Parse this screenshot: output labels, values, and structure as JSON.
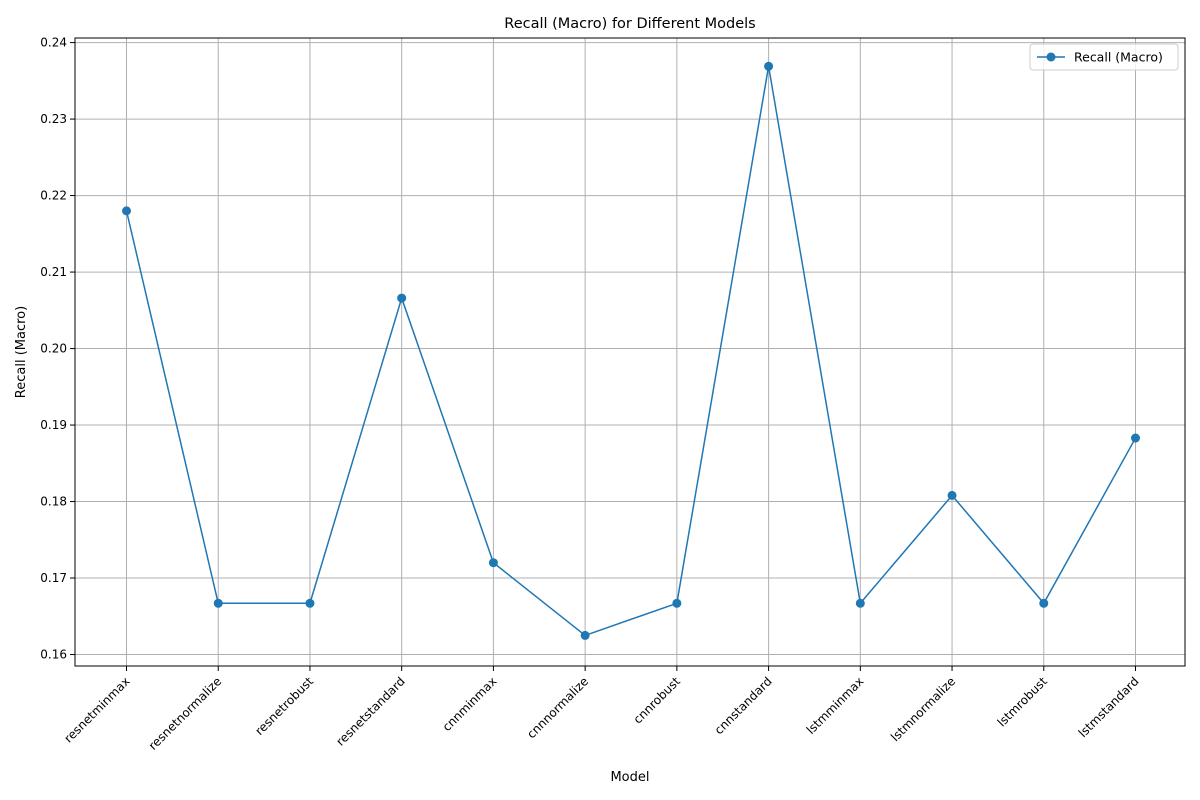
{
  "chart_data": {
    "type": "line",
    "title": "Recall (Macro) for Different Models",
    "xlabel": "Model",
    "ylabel": "Recall (Macro)",
    "categories": [
      "resnetminmax",
      "resnetnormalize",
      "resnetrobust",
      "resnetstandard",
      "cnnminmax",
      "cnnnormalize",
      "cnnrobust",
      "cnnstandard",
      "lstmminmax",
      "lstmnormalize",
      "lstmrobust",
      "lstmstandard"
    ],
    "series": [
      {
        "name": "Recall (Macro)",
        "values": [
          0.218,
          0.1667,
          0.1667,
          0.2066,
          0.172,
          0.1625,
          0.1667,
          0.2369,
          0.1667,
          0.1808,
          0.1667,
          0.1883
        ],
        "color": "#1f77b4",
        "marker": "circle"
      }
    ],
    "ylim": [
      0.1585,
      0.2406
    ],
    "yticks": [
      0.16,
      0.17,
      0.18,
      0.19,
      0.2,
      0.21,
      0.22,
      0.23,
      0.24
    ],
    "ytick_labels": [
      "0.16",
      "0.17",
      "0.18",
      "0.19",
      "0.20",
      "0.21",
      "0.22",
      "0.23",
      "0.24"
    ],
    "grid": true,
    "legend_position": "top-right"
  }
}
